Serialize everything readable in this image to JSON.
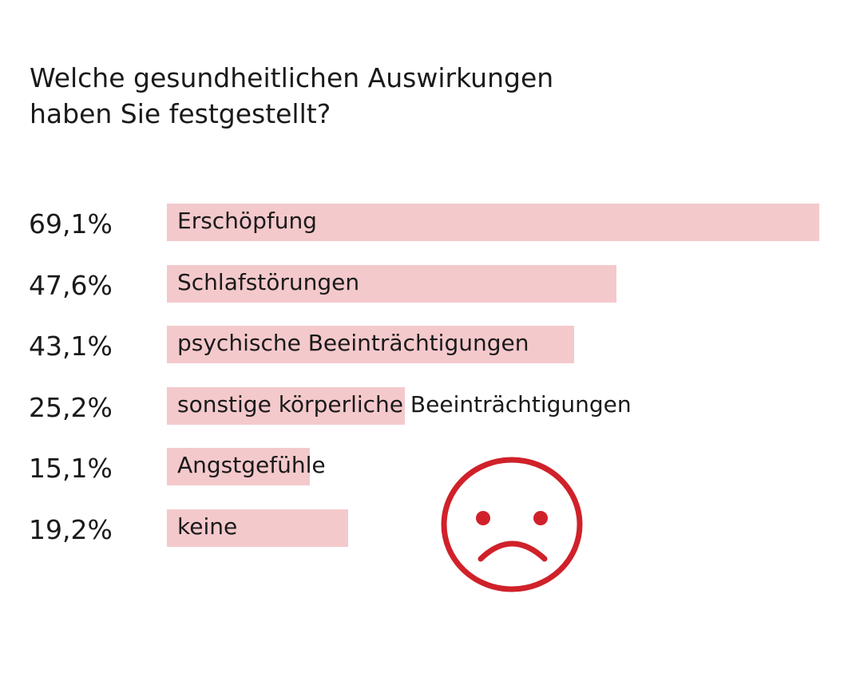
{
  "chart_data": {
    "type": "bar",
    "orientation": "horizontal",
    "title_lines": [
      "Welche gesundheitlichen Auswirkungen",
      "haben Sie festgestellt?"
    ],
    "categories": [
      "Erschöpfung",
      "Schlafstörungen",
      "psychische Beeinträchtigungen",
      "sonstige körperliche Beeinträchtigungen",
      "Angstgefühle",
      "keine"
    ],
    "values": [
      69.1,
      47.6,
      43.1,
      25.2,
      15.1,
      19.2
    ],
    "value_labels": [
      "69,1%",
      "47,6%",
      "43,1%",
      "25,2%",
      "15,1%",
      "19,2%"
    ],
    "unit": "%",
    "xlim": [
      0,
      69.1
    ],
    "grid": false,
    "legend": "none"
  },
  "colors": {
    "bar": "#f4c9cc",
    "text": "#1a1a1a",
    "smiley": "#d0212a"
  },
  "decoration": {
    "icon": "sad-face-icon"
  }
}
